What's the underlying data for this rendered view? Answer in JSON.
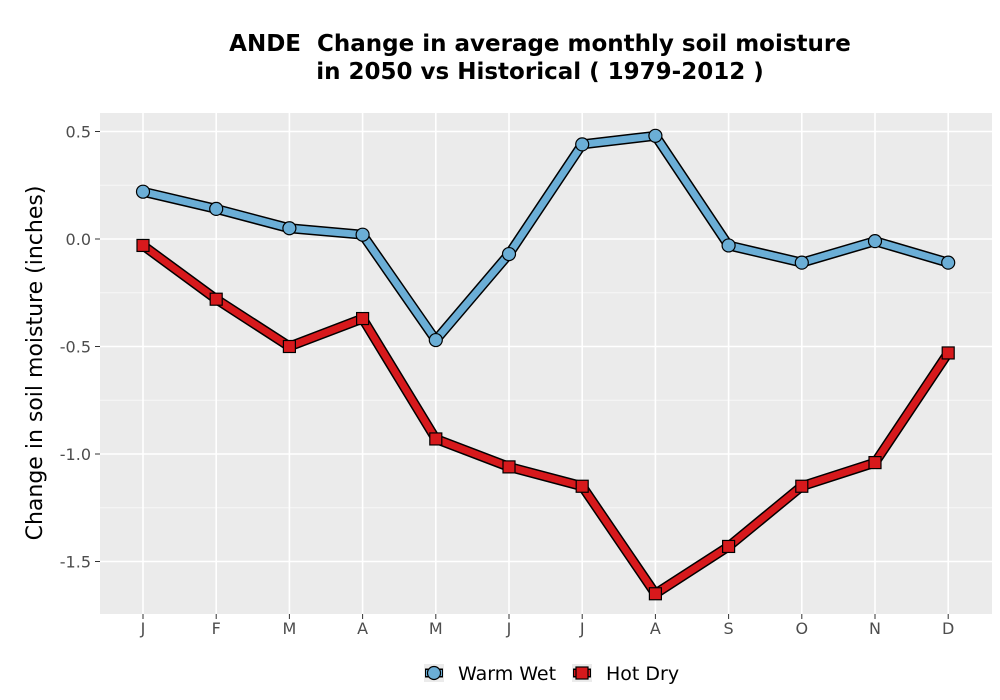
{
  "chart_data": {
    "type": "line",
    "title_lines": [
      "ANDE  Change in average monthly soil moisture",
      "in 2050 vs Historical ( 1979-2012 )"
    ],
    "xlabel": "",
    "ylabel": "Change in soil moisture (inches)",
    "categories": [
      "J",
      "F",
      "M",
      "A",
      "M",
      "J",
      "J",
      "A",
      "S",
      "O",
      "N",
      "D"
    ],
    "ylim": [
      -1.75,
      0.55
    ],
    "yticks": [
      0.5,
      0.0,
      -0.5,
      -1.0,
      -1.5
    ],
    "ytick_labels": [
      "0.5",
      "0.0",
      "-0.5",
      "-1.0",
      "-1.5"
    ],
    "grid": true,
    "legend_position": "bottom",
    "series": [
      {
        "name": "Warm Wet",
        "color": "#6baed6",
        "marker": "circle",
        "values": [
          0.22,
          0.14,
          0.05,
          0.02,
          -0.47,
          -0.07,
          0.44,
          0.48,
          -0.03,
          -0.11,
          -0.01,
          -0.11
        ]
      },
      {
        "name": "Hot Dry",
        "color": "#d7191c",
        "marker": "square",
        "values": [
          -0.03,
          -0.28,
          -0.5,
          -0.37,
          -0.93,
          -1.06,
          -1.15,
          -1.65,
          -1.43,
          -1.15,
          -1.04,
          -0.53
        ]
      }
    ]
  }
}
